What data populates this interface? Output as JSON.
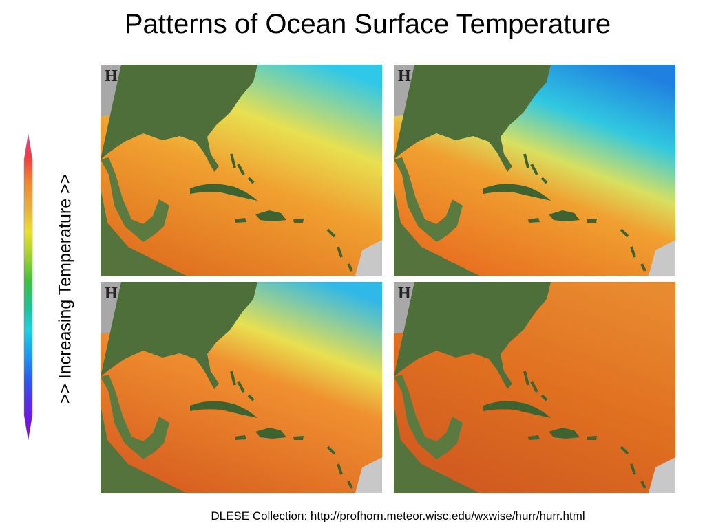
{
  "title": "Patterns of Ocean Surface Temperature",
  "colorbar": {
    "label": ">> Increasing Temperature >>"
  },
  "maps": [
    {
      "marker": "H"
    },
    {
      "marker": "H"
    },
    {
      "marker": "H"
    },
    {
      "marker": "H"
    }
  ],
  "footer": "DLESE Collection:  http://profhorn.meteor.wisc.edu/wxwise/hurr/hurr.html"
}
